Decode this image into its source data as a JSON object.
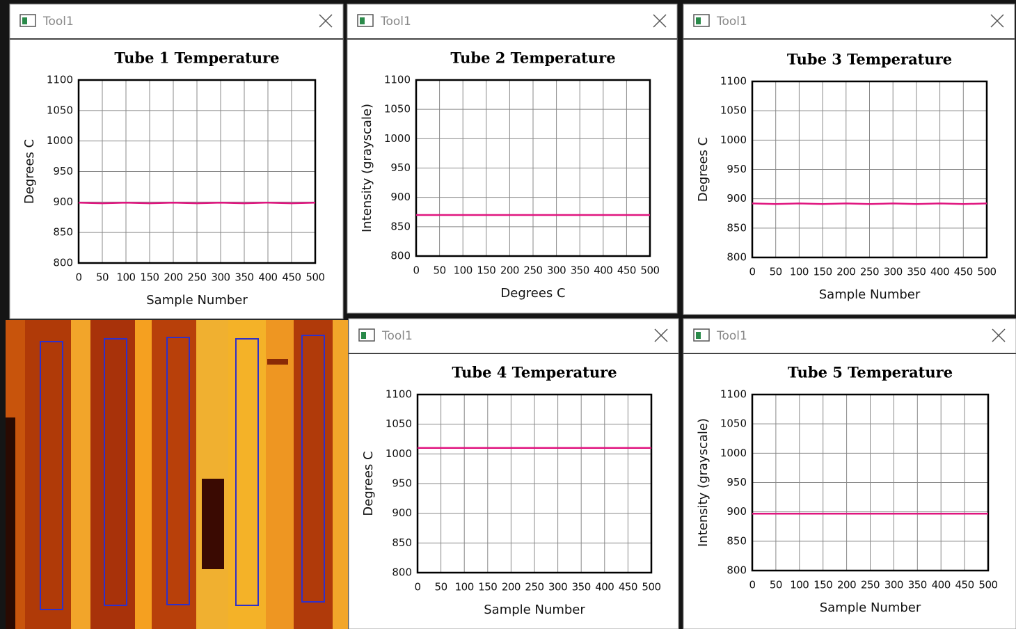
{
  "windows": [
    {
      "title": "Tool1"
    },
    {
      "title": "Tool1"
    },
    {
      "title": "Tool1"
    },
    {
      "title": "Tool1"
    },
    {
      "title": "Tool1"
    }
  ],
  "chart_data": [
    {
      "type": "line",
      "title": "Tube 1 Temperature",
      "x_label": "Sample Number",
      "y_label": "Degrees C",
      "x": [
        0,
        50,
        100,
        150,
        200,
        250,
        300,
        350,
        400,
        450,
        500
      ],
      "series": [
        {
          "color": "#e0157f",
          "values": [
            899,
            898,
            899,
            898,
            899,
            898,
            899,
            898,
            899,
            898,
            899
          ]
        }
      ],
      "xlim": [
        0,
        500
      ],
      "xticks": [
        0,
        50,
        100,
        150,
        200,
        250,
        300,
        350,
        400,
        450,
        500
      ],
      "ylim": [
        800,
        1100
      ],
      "yticks": [
        800,
        850,
        900,
        950,
        1000,
        1050,
        1100
      ],
      "grid": true
    },
    {
      "type": "line",
      "title": "Tube 2 Temperature",
      "x_label": "Degrees C",
      "y_label": "Intensity (grayscale)",
      "x": [
        0,
        50,
        100,
        150,
        200,
        250,
        300,
        350,
        400,
        450,
        500
      ],
      "series": [
        {
          "color": "#e0157f",
          "values": [
            870,
            870,
            870,
            870,
            870,
            870,
            870,
            870,
            870,
            870,
            870
          ]
        }
      ],
      "xlim": [
        0,
        500
      ],
      "xticks": [
        0,
        50,
        100,
        150,
        200,
        250,
        300,
        350,
        400,
        450,
        500
      ],
      "ylim": [
        800,
        1100
      ],
      "yticks": [
        800,
        850,
        900,
        950,
        1000,
        1050,
        1100
      ],
      "grid": true
    },
    {
      "type": "line",
      "title": "Tube 3 Temperature",
      "x_label": "Sample Number",
      "y_label": "Degrees C",
      "x": [
        0,
        50,
        100,
        150,
        200,
        250,
        300,
        350,
        400,
        450,
        500
      ],
      "series": [
        {
          "color": "#e0157f",
          "values": [
            892,
            891,
            892,
            891,
            892,
            891,
            892,
            891,
            892,
            891,
            892
          ]
        }
      ],
      "xlim": [
        0,
        500
      ],
      "xticks": [
        0,
        50,
        100,
        150,
        200,
        250,
        300,
        350,
        400,
        450,
        500
      ],
      "ylim": [
        800,
        1100
      ],
      "yticks": [
        800,
        850,
        900,
        950,
        1000,
        1050,
        1100
      ],
      "grid": true
    },
    {
      "type": "line",
      "title": "Tube 4 Temperature",
      "x_label": "Sample Number",
      "y_label": "Degrees C",
      "x": [
        0,
        50,
        100,
        150,
        200,
        250,
        300,
        350,
        400,
        450,
        500
      ],
      "series": [
        {
          "color": "#e0157f",
          "values": [
            1010,
            1010,
            1010,
            1010,
            1010,
            1010,
            1010,
            1010,
            1010,
            1010,
            1010
          ]
        }
      ],
      "xlim": [
        0,
        500
      ],
      "xticks": [
        0,
        50,
        100,
        150,
        200,
        250,
        300,
        350,
        400,
        450,
        500
      ],
      "ylim": [
        800,
        1100
      ],
      "yticks": [
        800,
        850,
        900,
        950,
        1000,
        1050,
        1100
      ],
      "grid": true
    },
    {
      "type": "line",
      "title": "Tube 5 Temperature",
      "x_label": "Sample Number",
      "y_label": "Intensity (grayscale)",
      "x": [
        0,
        50,
        100,
        150,
        200,
        250,
        300,
        350,
        400,
        450,
        500
      ],
      "series": [
        {
          "color": "#e0157f",
          "values": [
            897,
            897,
            897,
            897,
            897,
            897,
            897,
            897,
            897,
            897,
            897
          ]
        }
      ],
      "xlim": [
        0,
        500
      ],
      "xticks": [
        0,
        50,
        100,
        150,
        200,
        250,
        300,
        350,
        400,
        450,
        500
      ],
      "ylim": [
        800,
        1100
      ],
      "yticks": [
        800,
        850,
        900,
        950,
        1000,
        1050,
        1100
      ],
      "grid": true
    }
  ]
}
